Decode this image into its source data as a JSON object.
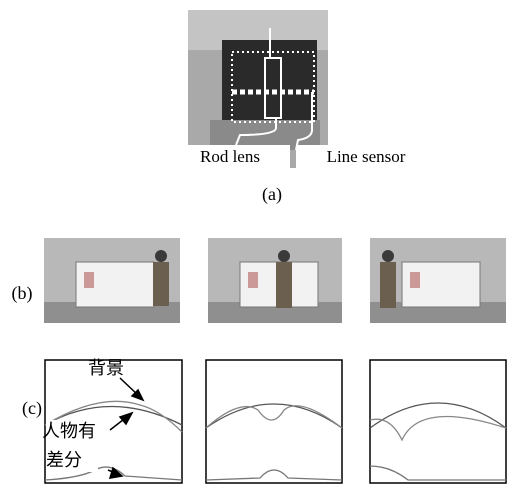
{
  "figure": {
    "panel_a": {
      "labels": [
        "Rod lens",
        "Line sensor"
      ],
      "caption": "(a)"
    },
    "panel_b": {
      "caption": "(b)"
    },
    "panel_c": {
      "caption": "(c)",
      "annotations": [
        "背景",
        "人物有",
        "差分"
      ]
    }
  }
}
